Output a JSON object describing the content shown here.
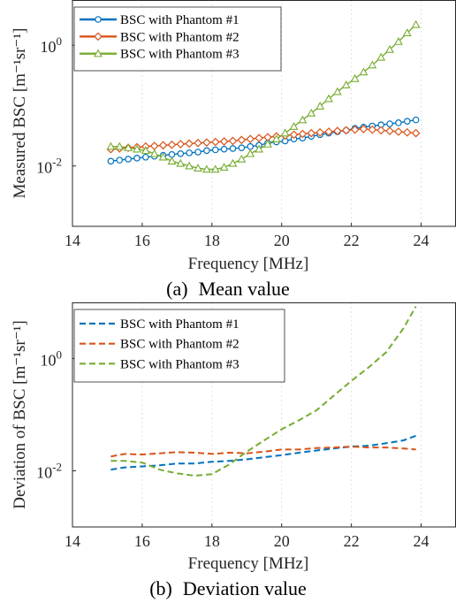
{
  "chart_data": [
    {
      "type": "line",
      "title": "",
      "caption_label": "(a)",
      "caption_text": "Mean value",
      "xlabel": "Frequency [MHz]",
      "ylabel": "Measured BSC [m⁻¹sr⁻¹]",
      "xlim": [
        14,
        25
      ],
      "ylim_log10": [
        -3.0,
        0.75
      ],
      "yscale": "log",
      "xticks": [
        "14",
        "16",
        "18",
        "20",
        "22",
        "24"
      ],
      "yticks": [
        {
          "label": "10",
          "exp": "-2",
          "value": 0.01
        },
        {
          "label": "10",
          "exp": "0",
          "value": 1
        }
      ],
      "grid": "x",
      "legend_position": "top-left",
      "x": [
        15.1,
        15.35,
        15.6,
        15.85,
        16.1,
        16.35,
        16.6,
        16.85,
        17.1,
        17.35,
        17.6,
        17.85,
        18.1,
        18.35,
        18.6,
        18.85,
        19.1,
        19.35,
        19.6,
        19.85,
        20.1,
        20.35,
        20.6,
        20.85,
        21.1,
        21.35,
        21.6,
        21.85,
        22.1,
        22.35,
        22.6,
        22.85,
        23.1,
        23.35,
        23.6,
        23.85
      ],
      "series": [
        {
          "name": "BSC with Phantom #1",
          "color": "#0072BD",
          "marker": "circle",
          "line_style": "solid",
          "values": [
            0.012,
            0.0125,
            0.013,
            0.0135,
            0.014,
            0.0145,
            0.015,
            0.0155,
            0.016,
            0.0165,
            0.017,
            0.018,
            0.0185,
            0.019,
            0.0195,
            0.02,
            0.021,
            0.022,
            0.024,
            0.025,
            0.026,
            0.028,
            0.029,
            0.031,
            0.033,
            0.035,
            0.037,
            0.039,
            0.042,
            0.044,
            0.046,
            0.048,
            0.05,
            0.052,
            0.055,
            0.058
          ]
        },
        {
          "name": "BSC with Phantom #2",
          "color": "#D95319",
          "marker": "diamond",
          "line_style": "solid",
          "values": [
            0.019,
            0.0195,
            0.02,
            0.0205,
            0.021,
            0.0215,
            0.022,
            0.0225,
            0.023,
            0.0235,
            0.024,
            0.0245,
            0.025,
            0.0255,
            0.026,
            0.027,
            0.028,
            0.029,
            0.03,
            0.031,
            0.032,
            0.033,
            0.034,
            0.035,
            0.036,
            0.037,
            0.038,
            0.039,
            0.04,
            0.041,
            0.04,
            0.039,
            0.038,
            0.037,
            0.036,
            0.035
          ]
        },
        {
          "name": "BSC with Phantom #3",
          "color": "#77AC30",
          "marker": "triangle",
          "line_style": "solid",
          "values": [
            0.021,
            0.021,
            0.02,
            0.019,
            0.018,
            0.016,
            0.014,
            0.012,
            0.011,
            0.01,
            0.0092,
            0.0088,
            0.0088,
            0.0095,
            0.011,
            0.013,
            0.016,
            0.019,
            0.023,
            0.028,
            0.035,
            0.045,
            0.058,
            0.075,
            0.098,
            0.13,
            0.17,
            0.22,
            0.28,
            0.36,
            0.47,
            0.63,
            0.85,
            1.15,
            1.6,
            2.2
          ]
        }
      ]
    },
    {
      "type": "line",
      "title": "",
      "caption_label": "(b)",
      "caption_text": "Deviation value",
      "xlabel": "Frequency [MHz]",
      "ylabel": "Deviation of BSC [m⁻¹sr⁻¹]",
      "xlim": [
        14,
        25
      ],
      "ylim_log10": [
        -3.0,
        1.0
      ],
      "yscale": "log",
      "xticks": [
        "14",
        "16",
        "18",
        "20",
        "22",
        "24"
      ],
      "yticks": [
        {
          "label": "10",
          "exp": "-2",
          "value": 0.01
        },
        {
          "label": "10",
          "exp": "0",
          "value": 1
        }
      ],
      "grid": "x",
      "legend_position": "top-left",
      "x": [
        15.1,
        15.5,
        16.0,
        16.5,
        17.0,
        17.5,
        18.0,
        18.5,
        19.0,
        19.5,
        20.0,
        20.5,
        21.0,
        21.5,
        22.0,
        22.5,
        23.0,
        23.5,
        23.85
      ],
      "series": [
        {
          "name": "BSC with Phantom #1",
          "color": "#0072BD",
          "line_style": "dashed",
          "values": [
            0.0105,
            0.0115,
            0.012,
            0.0125,
            0.0135,
            0.0135,
            0.0145,
            0.015,
            0.016,
            0.0175,
            0.019,
            0.021,
            0.023,
            0.025,
            0.027,
            0.028,
            0.031,
            0.035,
            0.042
          ]
        },
        {
          "name": "BSC with Phantom #2",
          "color": "#D95319",
          "line_style": "dashed",
          "values": [
            0.018,
            0.02,
            0.0195,
            0.0205,
            0.0215,
            0.021,
            0.02,
            0.021,
            0.0205,
            0.022,
            0.024,
            0.024,
            0.0255,
            0.026,
            0.027,
            0.026,
            0.026,
            0.025,
            0.024
          ]
        },
        {
          "name": "BSC with Phantom #3",
          "color": "#77AC30",
          "line_style": "dashed",
          "values": [
            0.015,
            0.015,
            0.014,
            0.0105,
            0.009,
            0.0082,
            0.0087,
            0.013,
            0.022,
            0.035,
            0.055,
            0.08,
            0.12,
            0.22,
            0.4,
            0.7,
            1.3,
            3.5,
            8.5
          ]
        }
      ]
    }
  ]
}
